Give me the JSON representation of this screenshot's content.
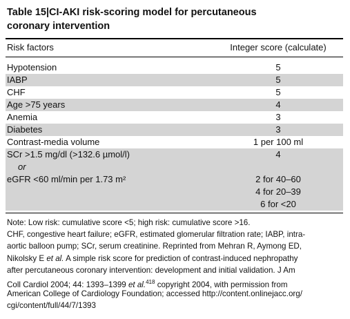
{
  "title": {
    "lines": [
      "Table 15|CI-AKI risk-scoring model for percutaneous",
      "coronary intervention"
    ]
  },
  "table": {
    "header": [
      "Risk factors",
      "Integer score (calculate)"
    ],
    "rows": [
      {
        "factor": "Hypotension",
        "score": "5"
      },
      {
        "factor": "IABP",
        "score": "5",
        "shaded": true
      },
      {
        "factor": "CHF",
        "score": "5"
      },
      {
        "factor": "Age >75 years",
        "score": "4",
        "shaded": true
      },
      {
        "factor": "Anemia",
        "score": "3"
      },
      {
        "factor": "Diabetes",
        "score": "3",
        "shaded": true
      },
      {
        "factor": "Contrast-media volume",
        "score": "1 per 100 ml"
      },
      {
        "shaded": true,
        "lines": [
          {
            "factor": "SCr >1.5 mg/dl (>132.6 µmol/l)",
            "score": "4"
          },
          {
            "factor": "or",
            "italic": true
          },
          {
            "factor": "eGFR <60 ml/min per 1.73 m²",
            "score": "2 for 40–60"
          },
          {
            "score": "4 for 20–39"
          },
          {
            "score": "6 for <20"
          }
        ]
      }
    ]
  },
  "note": {
    "lines": [
      [
        "Note: Low risk: cumulative score <5; high risk: cumulative score >16."
      ],
      [
        "CHF, congestive heart failure; eGFR, estimated glomerular filtration rate; IABP, intra-"
      ],
      [
        "aortic balloon pump; SCr, serum creatinine. Reprinted from Mehran R, Aymong ED,"
      ],
      [
        "Nikolsky E ",
        {
          "italic": "et al."
        },
        " A simple risk score for prediction of contrast-induced nephropathy"
      ],
      [
        "after percutaneous coronary intervention: development and initial validation. J Am"
      ],
      [
        "Coll Cardiol 2004; 44: 1393–1399 ",
        {
          "italic": "et al."
        },
        {
          "sup": "418"
        },
        " copyright 2004, with permission from"
      ],
      [
        "American College of Cardiology Foundation; accessed http://content.onlinejacc.org/"
      ],
      [
        "cgi/content/full/44/7/1393"
      ]
    ]
  }
}
